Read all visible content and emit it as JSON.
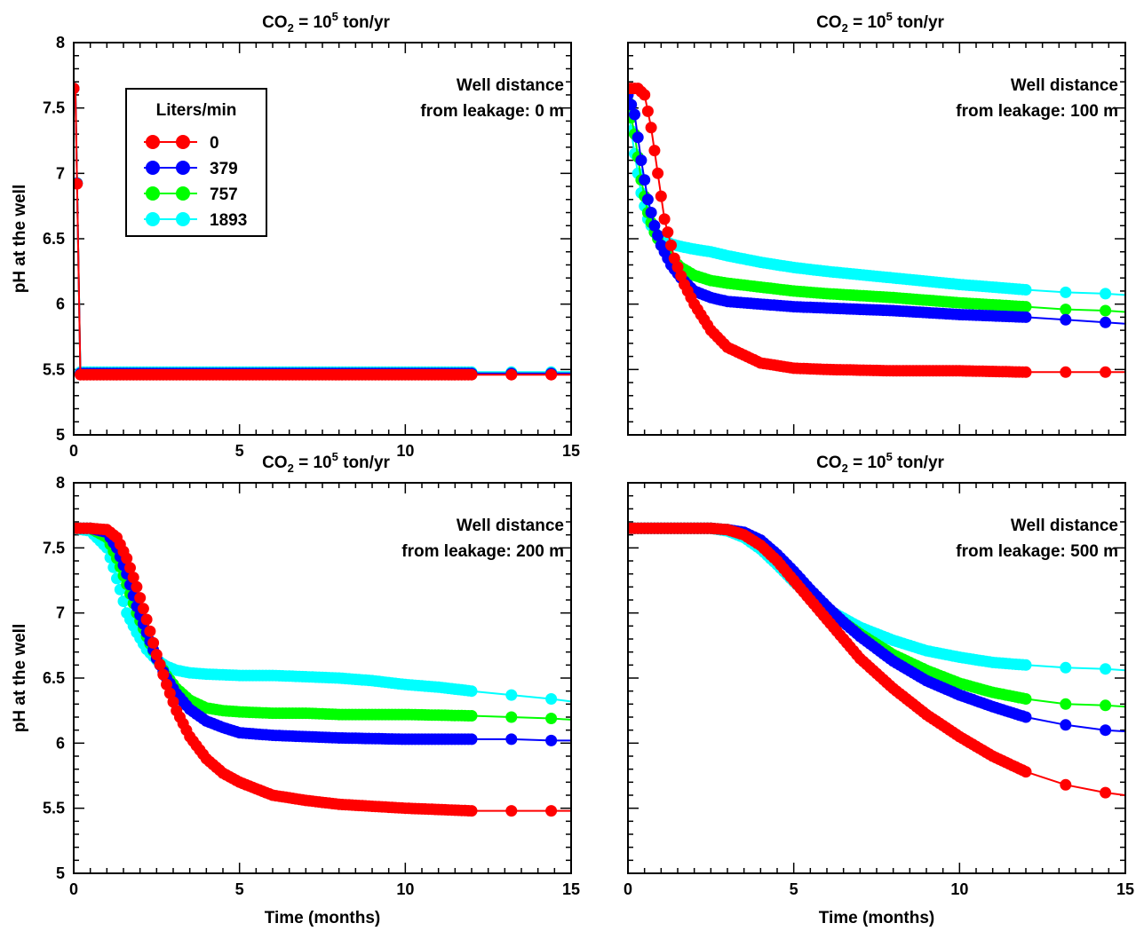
{
  "chart_data": [
    {
      "type": "line",
      "title": {
        "main": "CO",
        "sub": "2",
        "mid": " = 10",
        "sup": "5",
        "tail": " ton/yr"
      },
      "annotation": [
        "Well distance",
        "from leakage: 0 m"
      ],
      "xlabel": "",
      "ylabel": "pH at the well",
      "xlim": [
        0,
        15
      ],
      "ylim": [
        5,
        8
      ],
      "xticks": [
        "0",
        "5",
        "10",
        "15"
      ],
      "yticks": [
        "5",
        "5.5",
        "6",
        "6.5",
        "7",
        "7.5",
        "8"
      ],
      "legend": {
        "title": "Liters/min",
        "position": "top-left"
      },
      "series": [
        {
          "name": "0",
          "color": "#ff0000",
          "x": [
            0,
            0.05,
            0.2,
            1,
            3,
            6,
            9,
            12,
            13.2,
            14.4,
            15
          ],
          "y": [
            7.65,
            7.65,
            5.46,
            5.46,
            5.46,
            5.46,
            5.46,
            5.46,
            5.46,
            5.46,
            5.46
          ]
        },
        {
          "name": "379",
          "color": "#0000ff",
          "x": [
            0,
            0.05,
            0.2,
            1,
            3,
            6,
            9,
            12,
            13.2,
            14.4,
            15
          ],
          "y": [
            7.65,
            7.65,
            5.47,
            5.47,
            5.47,
            5.47,
            5.47,
            5.47,
            5.47,
            5.47,
            5.47
          ]
        },
        {
          "name": "757",
          "color": "#00ff00",
          "x": [
            0,
            0.05,
            0.2,
            1,
            3,
            6,
            9,
            12,
            13.2,
            14.4,
            15
          ],
          "y": [
            7.65,
            7.65,
            5.47,
            5.47,
            5.47,
            5.47,
            5.47,
            5.47,
            5.47,
            5.47,
            5.47
          ]
        },
        {
          "name": "1893",
          "color": "#00ffff",
          "x": [
            0,
            0.05,
            0.2,
            1,
            3,
            6,
            9,
            12,
            13.2,
            14.4,
            15
          ],
          "y": [
            7.65,
            7.65,
            5.48,
            5.48,
            5.48,
            5.48,
            5.48,
            5.48,
            5.48,
            5.48,
            5.48
          ]
        }
      ]
    },
    {
      "type": "line",
      "title": {
        "main": "CO",
        "sub": "2",
        "mid": " = 10",
        "sup": "5",
        "tail": " ton/yr"
      },
      "annotation": [
        "Well distance",
        "from leakage: 100 m"
      ],
      "xlabel": "",
      "ylabel": "",
      "xlim": [
        0,
        15
      ],
      "ylim": [
        5,
        8
      ],
      "xticks": [],
      "yticks": [],
      "series": [
        {
          "name": "0",
          "color": "#ff0000",
          "x": [
            0,
            0.3,
            0.5,
            0.7,
            0.9,
            1.1,
            1.4,
            1.7,
            2.0,
            2.5,
            3.0,
            4.0,
            5.0,
            6.0,
            8.0,
            10.0,
            12.0,
            13.2,
            14.4,
            15.0
          ],
          "y": [
            7.65,
            7.65,
            7.6,
            7.35,
            7.0,
            6.65,
            6.35,
            6.15,
            6.0,
            5.8,
            5.67,
            5.55,
            5.51,
            5.5,
            5.49,
            5.49,
            5.48,
            5.48,
            5.48,
            5.48
          ]
        },
        {
          "name": "379",
          "color": "#0000ff",
          "x": [
            0,
            0.2,
            0.4,
            0.6,
            0.8,
            1.0,
            1.3,
            1.6,
            2.0,
            2.5,
            3.0,
            4.0,
            5.0,
            6.0,
            8.0,
            10.0,
            12.0,
            13.2,
            14.4,
            15.0
          ],
          "y": [
            7.6,
            7.45,
            7.1,
            6.8,
            6.6,
            6.45,
            6.3,
            6.2,
            6.1,
            6.05,
            6.02,
            6.0,
            5.98,
            5.97,
            5.95,
            5.92,
            5.9,
            5.88,
            5.86,
            5.85
          ]
        },
        {
          "name": "757",
          "color": "#00ff00",
          "x": [
            0,
            0.2,
            0.4,
            0.6,
            0.8,
            1.0,
            1.3,
            1.6,
            2.0,
            2.5,
            3.0,
            4.0,
            5.0,
            6.0,
            8.0,
            10.0,
            12.0,
            13.2,
            14.4,
            15.0
          ],
          "y": [
            7.55,
            7.3,
            6.95,
            6.7,
            6.55,
            6.45,
            6.35,
            6.28,
            6.22,
            6.18,
            6.16,
            6.13,
            6.1,
            6.08,
            6.05,
            6.01,
            5.98,
            5.96,
            5.95,
            5.94
          ]
        },
        {
          "name": "1893",
          "color": "#00ffff",
          "x": [
            0,
            0.2,
            0.4,
            0.6,
            0.8,
            1.0,
            1.3,
            1.6,
            2.0,
            2.5,
            3.0,
            4.0,
            5.0,
            6.0,
            8.0,
            10.0,
            12.0,
            13.2,
            14.4,
            15.0
          ],
          "y": [
            7.5,
            7.15,
            6.85,
            6.65,
            6.55,
            6.5,
            6.46,
            6.44,
            6.42,
            6.4,
            6.37,
            6.32,
            6.28,
            6.25,
            6.2,
            6.15,
            6.11,
            6.09,
            6.08,
            6.07
          ]
        }
      ]
    },
    {
      "type": "line",
      "title": {
        "main": "CO",
        "sub": "2",
        "mid": " = 10",
        "sup": "5",
        "tail": " ton/yr"
      },
      "annotation": [
        "Well distance",
        "from leakage: 200 m"
      ],
      "xlabel": "Time (months)",
      "ylabel": "pH at the well",
      "xlim": [
        0,
        15
      ],
      "ylim": [
        5,
        8
      ],
      "xticks": [
        "0",
        "5",
        "10",
        "15"
      ],
      "yticks": [
        "5",
        "5.5",
        "6",
        "6.5",
        "7",
        "7.5",
        "8"
      ],
      "series": [
        {
          "name": "0",
          "color": "#ff0000",
          "x": [
            0,
            0.5,
            1.0,
            1.3,
            1.6,
            1.9,
            2.2,
            2.5,
            2.8,
            3.1,
            3.5,
            4.0,
            4.5,
            5.0,
            6.0,
            7.0,
            8.0,
            10.0,
            12.0,
            13.2,
            14.4,
            15.0
          ],
          "y": [
            7.65,
            7.65,
            7.64,
            7.58,
            7.42,
            7.2,
            6.95,
            6.68,
            6.45,
            6.25,
            6.05,
            5.88,
            5.77,
            5.7,
            5.6,
            5.56,
            5.53,
            5.5,
            5.48,
            5.48,
            5.48,
            5.48
          ]
        },
        {
          "name": "379",
          "color": "#0000ff",
          "x": [
            0,
            0.5,
            1.0,
            1.3,
            1.6,
            1.9,
            2.2,
            2.5,
            2.8,
            3.1,
            3.5,
            4.0,
            4.5,
            5.0,
            6.0,
            7.0,
            8.0,
            10.0,
            12.0,
            13.2,
            14.4,
            15.0
          ],
          "y": [
            7.65,
            7.65,
            7.62,
            7.5,
            7.3,
            7.05,
            6.85,
            6.65,
            6.5,
            6.38,
            6.26,
            6.17,
            6.12,
            6.08,
            6.06,
            6.05,
            6.04,
            6.03,
            6.03,
            6.03,
            6.02,
            6.02
          ]
        },
        {
          "name": "757",
          "color": "#00ff00",
          "x": [
            0,
            0.5,
            1.0,
            1.3,
            1.6,
            1.9,
            2.2,
            2.5,
            2.8,
            3.1,
            3.5,
            4.0,
            4.5,
            5.0,
            6.0,
            7.0,
            8.0,
            10.0,
            12.0,
            13.2,
            14.4,
            15.0
          ],
          "y": [
            7.65,
            7.65,
            7.58,
            7.42,
            7.22,
            7.0,
            6.82,
            6.65,
            6.52,
            6.42,
            6.33,
            6.27,
            6.25,
            6.24,
            6.23,
            6.23,
            6.22,
            6.22,
            6.21,
            6.2,
            6.19,
            6.18
          ]
        },
        {
          "name": "1893",
          "color": "#00ffff",
          "x": [
            0,
            0.5,
            1.0,
            1.2,
            1.4,
            1.6,
            1.9,
            2.2,
            2.5,
            2.8,
            3.1,
            3.5,
            4.0,
            5.0,
            6.0,
            7.0,
            8.0,
            9.0,
            10.0,
            11.0,
            12.0,
            13.2,
            14.4,
            15.0
          ],
          "y": [
            7.65,
            7.63,
            7.5,
            7.35,
            7.18,
            7.0,
            6.85,
            6.72,
            6.64,
            6.59,
            6.56,
            6.54,
            6.53,
            6.52,
            6.52,
            6.51,
            6.5,
            6.48,
            6.45,
            6.43,
            6.4,
            6.37,
            6.34,
            6.32
          ]
        }
      ]
    },
    {
      "type": "line",
      "title": {
        "main": "CO",
        "sub": "2",
        "mid": " = 10",
        "sup": "5",
        "tail": " ton/yr"
      },
      "annotation": [
        "Well distance",
        "from leakage: 500 m"
      ],
      "xlabel": "Time (months)",
      "ylabel": "",
      "xlim": [
        0,
        15
      ],
      "ylim": [
        5,
        8
      ],
      "xticks": [
        "0",
        "5",
        "10",
        "15"
      ],
      "yticks": [],
      "series": [
        {
          "name": "0",
          "color": "#ff0000",
          "x": [
            0,
            1.0,
            2.0,
            2.5,
            3.0,
            3.5,
            4.0,
            4.5,
            5.0,
            5.5,
            6.0,
            6.5,
            7.0,
            8.0,
            9.0,
            10.0,
            11.0,
            12.0,
            13.2,
            14.4,
            15.0
          ],
          "y": [
            7.65,
            7.65,
            7.65,
            7.65,
            7.64,
            7.6,
            7.52,
            7.4,
            7.25,
            7.1,
            6.95,
            6.8,
            6.65,
            6.42,
            6.22,
            6.05,
            5.9,
            5.78,
            5.68,
            5.62,
            5.6
          ]
        },
        {
          "name": "379",
          "color": "#0000ff",
          "x": [
            0,
            1.0,
            2.0,
            2.5,
            3.0,
            3.5,
            4.0,
            4.5,
            5.0,
            5.5,
            6.0,
            6.5,
            7.0,
            8.0,
            9.0,
            10.0,
            11.0,
            12.0,
            13.2,
            14.4,
            15.0
          ],
          "y": [
            7.65,
            7.65,
            7.65,
            7.65,
            7.64,
            7.62,
            7.56,
            7.45,
            7.32,
            7.18,
            7.05,
            6.93,
            6.82,
            6.63,
            6.48,
            6.37,
            6.28,
            6.2,
            6.14,
            6.1,
            6.09
          ]
        },
        {
          "name": "757",
          "color": "#00ff00",
          "x": [
            0,
            1.0,
            2.0,
            2.5,
            3.0,
            3.5,
            4.0,
            4.5,
            5.0,
            5.5,
            6.0,
            6.5,
            7.0,
            8.0,
            9.0,
            10.0,
            11.0,
            12.0,
            13.2,
            14.4,
            15.0
          ],
          "y": [
            7.65,
            7.65,
            7.65,
            7.65,
            7.64,
            7.61,
            7.54,
            7.42,
            7.28,
            7.14,
            7.03,
            6.93,
            6.84,
            6.68,
            6.56,
            6.46,
            6.39,
            6.34,
            6.3,
            6.29,
            6.28
          ]
        },
        {
          "name": "1893",
          "color": "#00ffff",
          "x": [
            0,
            1.0,
            2.0,
            2.5,
            3.0,
            3.5,
            4.0,
            4.5,
            5.0,
            5.5,
            6.0,
            6.5,
            7.0,
            8.0,
            9.0,
            10.0,
            11.0,
            12.0,
            13.2,
            14.4,
            15.0
          ],
          "y": [
            7.65,
            7.65,
            7.65,
            7.65,
            7.63,
            7.58,
            7.49,
            7.37,
            7.24,
            7.12,
            7.03,
            6.96,
            6.89,
            6.79,
            6.71,
            6.66,
            6.62,
            6.6,
            6.58,
            6.57,
            6.56
          ]
        }
      ]
    }
  ]
}
